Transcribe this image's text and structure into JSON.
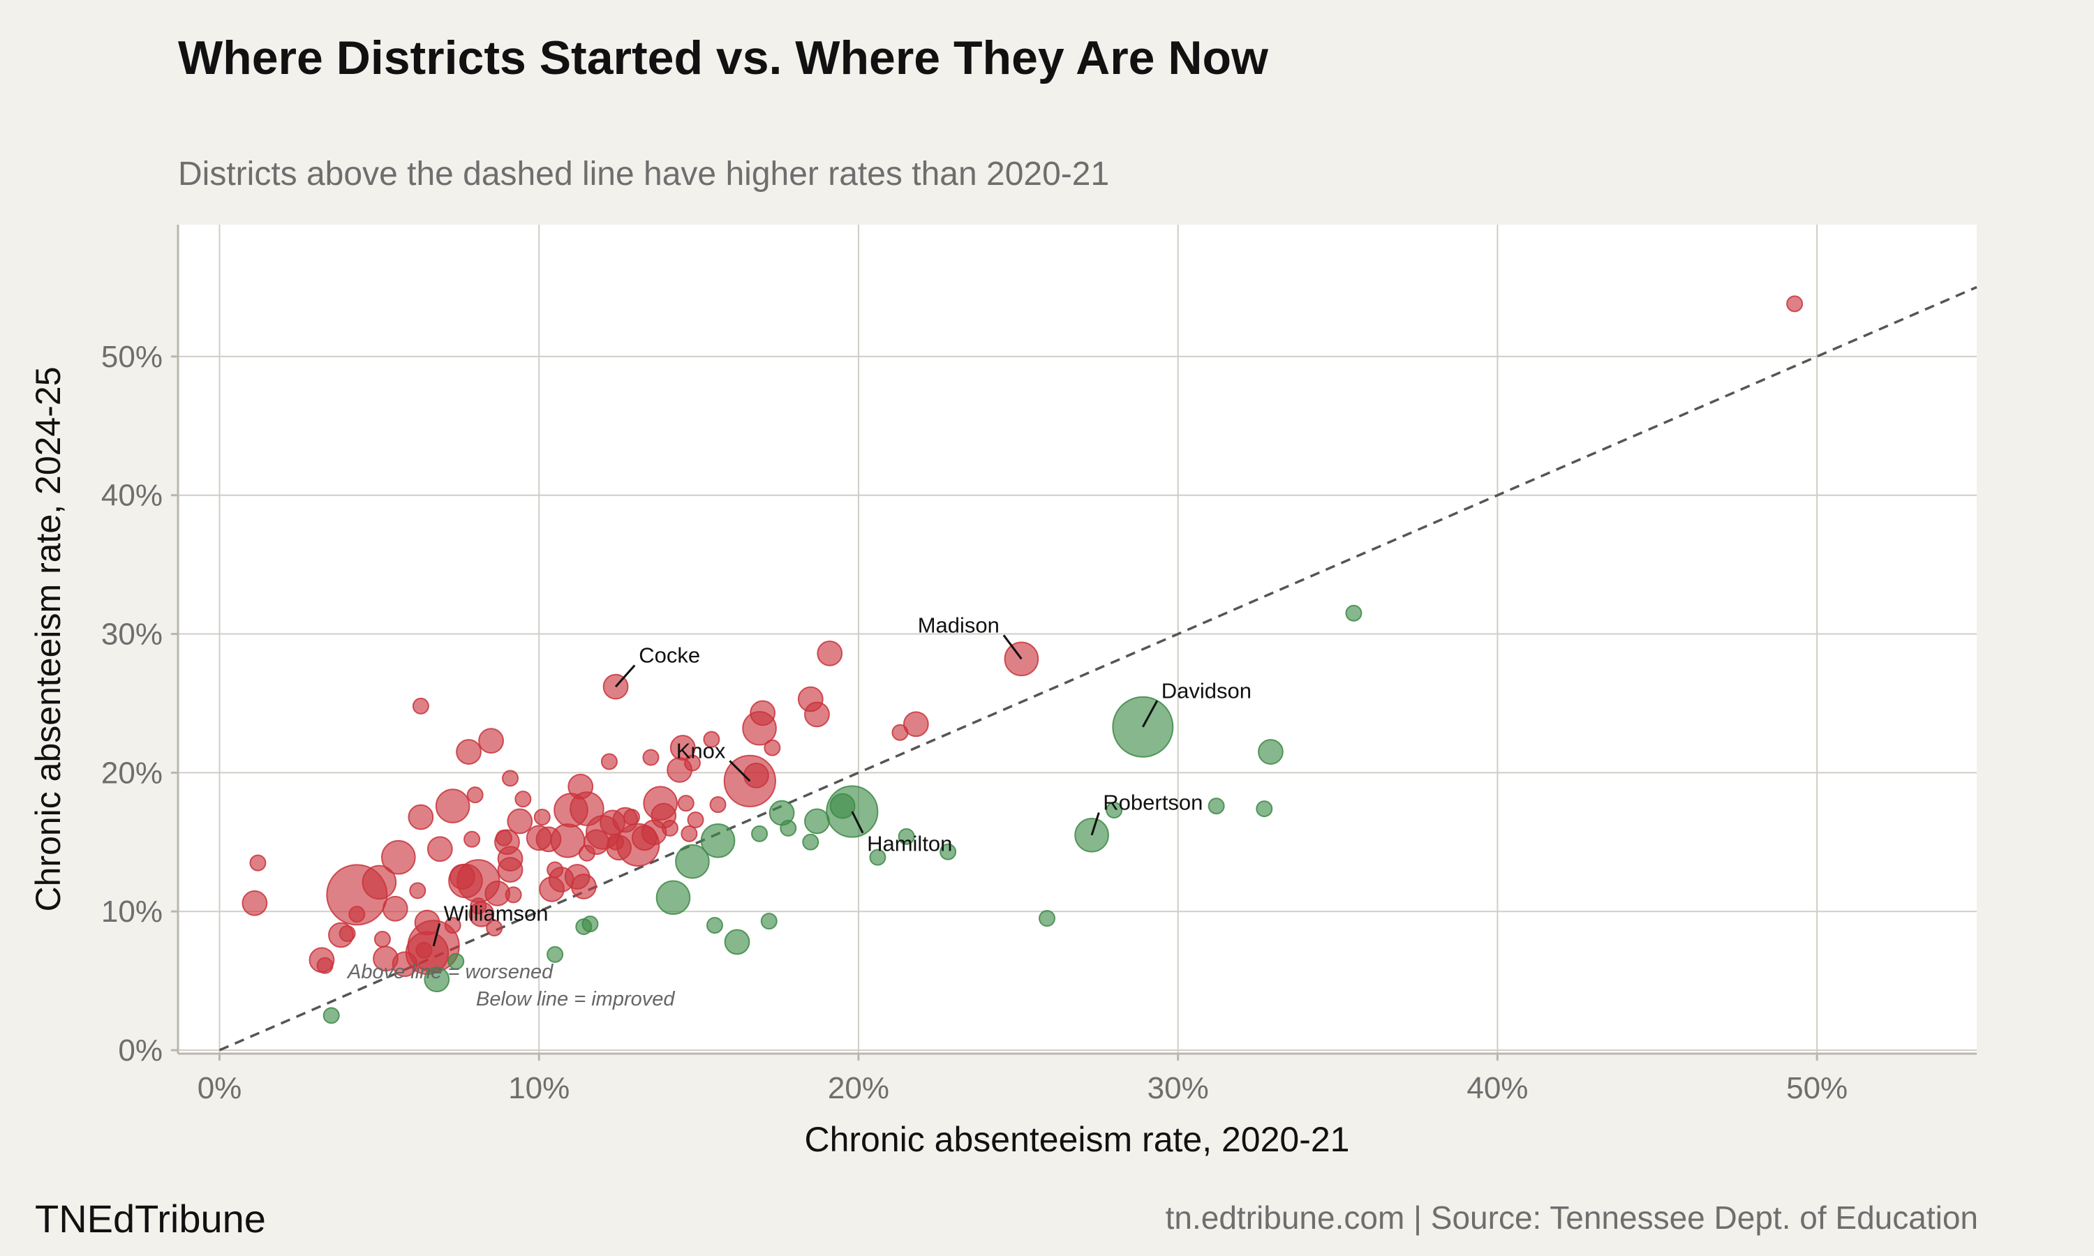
{
  "header": {
    "title": "Where Districts Started vs. Where They Are Now",
    "subtitle": "Districts above the dashed line have higher rates than 2020-21"
  },
  "footer": {
    "brand": "TNEdTribune",
    "source": "tn.edtribune.com | Source: Tennessee Dept. of Education"
  },
  "colors": {
    "worsened": "#c9343c",
    "improved": "#3d8a47",
    "reference_line": "#555555"
  },
  "chart_data": {
    "type": "scatter",
    "title": "Where Districts Started vs. Where They Are Now",
    "subtitle": "Districts above the dashed line have higher rates than 2020-21",
    "xlabel": "Chronic absenteeism rate, 2020-21",
    "ylabel": "Chronic absenteeism rate, 2024-25",
    "xlim": [
      -0.013,
      0.55
    ],
    "ylim": [
      -0.0025,
      0.595
    ],
    "x_ticks": [
      0,
      0.1,
      0.2,
      0.3,
      0.4,
      0.5
    ],
    "x_tick_labels": [
      "0%",
      "10%",
      "20%",
      "30%",
      "40%",
      "50%"
    ],
    "y_ticks": [
      0,
      0.1,
      0.2,
      0.3,
      0.4,
      0.5
    ],
    "y_tick_labels": [
      "0%",
      "10%",
      "20%",
      "30%",
      "40%",
      "50%"
    ],
    "grid": true,
    "reference_line": "y = x",
    "region_notes": [
      "Above line = worsened",
      "Below line = improved"
    ],
    "size_encoding": "district enrollment (relative)",
    "series": [
      {
        "status": "worsened",
        "points": [
          {
            "x": 0.012,
            "y": 0.135,
            "s": 1
          },
          {
            "x": 0.011,
            "y": 0.106,
            "s": 2
          },
          {
            "x": 0.032,
            "y": 0.065,
            "s": 2
          },
          {
            "x": 0.033,
            "y": 0.061,
            "s": 1
          },
          {
            "x": 0.038,
            "y": 0.083,
            "s": 2
          },
          {
            "x": 0.04,
            "y": 0.084,
            "s": 1
          },
          {
            "x": 0.043,
            "y": 0.112,
            "s": 6
          },
          {
            "x": 0.043,
            "y": 0.098,
            "s": 1
          },
          {
            "x": 0.05,
            "y": 0.121,
            "s": 3
          },
          {
            "x": 0.051,
            "y": 0.08,
            "s": 1
          },
          {
            "x": 0.052,
            "y": 0.066,
            "s": 2
          },
          {
            "x": 0.055,
            "y": 0.102,
            "s": 2
          },
          {
            "x": 0.056,
            "y": 0.139,
            "s": 3
          },
          {
            "x": 0.058,
            "y": 0.062,
            "s": 2
          },
          {
            "x": 0.062,
            "y": 0.115,
            "s": 1
          },
          {
            "x": 0.063,
            "y": 0.248,
            "s": 1
          },
          {
            "x": 0.063,
            "y": 0.168,
            "s": 2
          },
          {
            "x": 0.064,
            "y": 0.072,
            "s": 1
          },
          {
            "x": 0.065,
            "y": 0.092,
            "s": 2
          },
          {
            "x": 0.065,
            "y": 0.07,
            "s": 4
          },
          {
            "x": 0.067,
            "y": 0.075,
            "s": 5
          },
          {
            "x": 0.069,
            "y": 0.145,
            "s": 2
          },
          {
            "x": 0.073,
            "y": 0.09,
            "s": 1
          },
          {
            "x": 0.073,
            "y": 0.176,
            "s": 3
          },
          {
            "x": 0.076,
            "y": 0.125,
            "s": 2
          },
          {
            "x": 0.077,
            "y": 0.122,
            "s": 3
          },
          {
            "x": 0.078,
            "y": 0.215,
            "s": 2
          },
          {
            "x": 0.079,
            "y": 0.152,
            "s": 1
          },
          {
            "x": 0.08,
            "y": 0.184,
            "s": 1
          },
          {
            "x": 0.081,
            "y": 0.122,
            "s": 4
          },
          {
            "x": 0.081,
            "y": 0.104,
            "s": 1
          },
          {
            "x": 0.082,
            "y": 0.098,
            "s": 2
          },
          {
            "x": 0.085,
            "y": 0.223,
            "s": 2
          },
          {
            "x": 0.086,
            "y": 0.088,
            "s": 1
          },
          {
            "x": 0.087,
            "y": 0.113,
            "s": 2
          },
          {
            "x": 0.089,
            "y": 0.153,
            "s": 1
          },
          {
            "x": 0.09,
            "y": 0.15,
            "s": 2
          },
          {
            "x": 0.091,
            "y": 0.196,
            "s": 1
          },
          {
            "x": 0.091,
            "y": 0.138,
            "s": 2
          },
          {
            "x": 0.091,
            "y": 0.13,
            "s": 2
          },
          {
            "x": 0.092,
            "y": 0.112,
            "s": 1
          },
          {
            "x": 0.094,
            "y": 0.165,
            "s": 2
          },
          {
            "x": 0.095,
            "y": 0.181,
            "s": 1
          },
          {
            "x": 0.1,
            "y": 0.153,
            "s": 2
          },
          {
            "x": 0.101,
            "y": 0.168,
            "s": 1
          },
          {
            "x": 0.103,
            "y": 0.152,
            "s": 2
          },
          {
            "x": 0.104,
            "y": 0.116,
            "s": 2
          },
          {
            "x": 0.105,
            "y": 0.13,
            "s": 1
          },
          {
            "x": 0.107,
            "y": 0.123,
            "s": 2
          },
          {
            "x": 0.109,
            "y": 0.151,
            "s": 3
          },
          {
            "x": 0.11,
            "y": 0.173,
            "s": 3
          },
          {
            "x": 0.112,
            "y": 0.125,
            "s": 2
          },
          {
            "x": 0.113,
            "y": 0.19,
            "s": 2
          },
          {
            "x": 0.114,
            "y": 0.118,
            "s": 2
          },
          {
            "x": 0.115,
            "y": 0.174,
            "s": 3
          },
          {
            "x": 0.115,
            "y": 0.142,
            "s": 1
          },
          {
            "x": 0.118,
            "y": 0.15,
            "s": 2
          },
          {
            "x": 0.12,
            "y": 0.157,
            "s": 3
          },
          {
            "x": 0.122,
            "y": 0.208,
            "s": 1
          },
          {
            "x": 0.123,
            "y": 0.164,
            "s": 2
          },
          {
            "x": 0.124,
            "y": 0.262,
            "s": 2
          },
          {
            "x": 0.124,
            "y": 0.15,
            "s": 1
          },
          {
            "x": 0.125,
            "y": 0.146,
            "s": 2
          },
          {
            "x": 0.127,
            "y": 0.166,
            "s": 2
          },
          {
            "x": 0.129,
            "y": 0.168,
            "s": 1
          },
          {
            "x": 0.131,
            "y": 0.148,
            "s": 4
          },
          {
            "x": 0.133,
            "y": 0.153,
            "s": 2
          },
          {
            "x": 0.135,
            "y": 0.211,
            "s": 1
          },
          {
            "x": 0.136,
            "y": 0.157,
            "s": 2
          },
          {
            "x": 0.138,
            "y": 0.178,
            "s": 3
          },
          {
            "x": 0.139,
            "y": 0.169,
            "s": 2
          },
          {
            "x": 0.141,
            "y": 0.16,
            "s": 1
          },
          {
            "x": 0.144,
            "y": 0.202,
            "s": 2
          },
          {
            "x": 0.145,
            "y": 0.218,
            "s": 2
          },
          {
            "x": 0.146,
            "y": 0.178,
            "s": 1
          },
          {
            "x": 0.147,
            "y": 0.156,
            "s": 1
          },
          {
            "x": 0.148,
            "y": 0.207,
            "s": 1
          },
          {
            "x": 0.149,
            "y": 0.166,
            "s": 1
          },
          {
            "x": 0.154,
            "y": 0.224,
            "s": 1
          },
          {
            "x": 0.156,
            "y": 0.177,
            "s": 1
          },
          {
            "x": 0.166,
            "y": 0.194,
            "s": 5
          },
          {
            "x": 0.168,
            "y": 0.198,
            "s": 2
          },
          {
            "x": 0.169,
            "y": 0.232,
            "s": 3
          },
          {
            "x": 0.17,
            "y": 0.243,
            "s": 2
          },
          {
            "x": 0.173,
            "y": 0.218,
            "s": 1
          },
          {
            "x": 0.185,
            "y": 0.253,
            "s": 2
          },
          {
            "x": 0.187,
            "y": 0.242,
            "s": 2
          },
          {
            "x": 0.191,
            "y": 0.286,
            "s": 2
          },
          {
            "x": 0.213,
            "y": 0.229,
            "s": 1
          },
          {
            "x": 0.218,
            "y": 0.235,
            "s": 2
          },
          {
            "x": 0.251,
            "y": 0.282,
            "s": 3
          },
          {
            "x": 0.493,
            "y": 0.538,
            "s": 1
          }
        ]
      },
      {
        "status": "improved",
        "points": [
          {
            "x": 0.035,
            "y": 0.025,
            "s": 1
          },
          {
            "x": 0.068,
            "y": 0.051,
            "s": 2
          },
          {
            "x": 0.074,
            "y": 0.064,
            "s": 1
          },
          {
            "x": 0.105,
            "y": 0.069,
            "s": 1
          },
          {
            "x": 0.114,
            "y": 0.089,
            "s": 1
          },
          {
            "x": 0.116,
            "y": 0.091,
            "s": 1
          },
          {
            "x": 0.142,
            "y": 0.11,
            "s": 3
          },
          {
            "x": 0.148,
            "y": 0.136,
            "s": 3
          },
          {
            "x": 0.155,
            "y": 0.09,
            "s": 1
          },
          {
            "x": 0.156,
            "y": 0.151,
            "s": 3
          },
          {
            "x": 0.162,
            "y": 0.078,
            "s": 2
          },
          {
            "x": 0.169,
            "y": 0.156,
            "s": 1
          },
          {
            "x": 0.172,
            "y": 0.093,
            "s": 1
          },
          {
            "x": 0.176,
            "y": 0.171,
            "s": 2
          },
          {
            "x": 0.178,
            "y": 0.16,
            "s": 1
          },
          {
            "x": 0.185,
            "y": 0.15,
            "s": 1
          },
          {
            "x": 0.187,
            "y": 0.165,
            "s": 2
          },
          {
            "x": 0.195,
            "y": 0.176,
            "s": 2
          },
          {
            "x": 0.198,
            "y": 0.172,
            "s": 5
          },
          {
            "x": 0.206,
            "y": 0.139,
            "s": 1
          },
          {
            "x": 0.215,
            "y": 0.154,
            "s": 1
          },
          {
            "x": 0.228,
            "y": 0.143,
            "s": 1
          },
          {
            "x": 0.259,
            "y": 0.095,
            "s": 1
          },
          {
            "x": 0.273,
            "y": 0.155,
            "s": 3
          },
          {
            "x": 0.28,
            "y": 0.173,
            "s": 1
          },
          {
            "x": 0.289,
            "y": 0.233,
            "s": 6
          },
          {
            "x": 0.312,
            "y": 0.176,
            "s": 1
          },
          {
            "x": 0.327,
            "y": 0.174,
            "s": 1
          },
          {
            "x": 0.329,
            "y": 0.215,
            "s": 2
          },
          {
            "x": 0.355,
            "y": 0.315,
            "s": 1
          }
        ]
      }
    ],
    "labeled_districts": [
      {
        "name": "Cocke",
        "x": 0.124,
        "y": 0.262
      },
      {
        "name": "Madison",
        "x": 0.251,
        "y": 0.282
      },
      {
        "name": "Davidson",
        "x": 0.289,
        "y": 0.233
      },
      {
        "name": "Knox",
        "x": 0.166,
        "y": 0.194
      },
      {
        "name": "Robertson",
        "x": 0.273,
        "y": 0.155
      },
      {
        "name": "Hamilton",
        "x": 0.198,
        "y": 0.172
      },
      {
        "name": "Williamson",
        "x": 0.067,
        "y": 0.075
      }
    ]
  }
}
